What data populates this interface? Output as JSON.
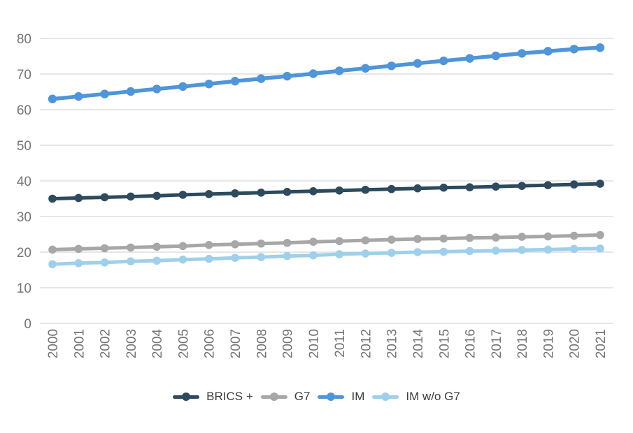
{
  "chart_data": {
    "type": "line",
    "title": "",
    "categories": [
      "2000",
      "2001",
      "2002",
      "2003",
      "2004",
      "2005",
      "2006",
      "2007",
      "2008",
      "2009",
      "2010",
      "2011",
      "2012",
      "2013",
      "2014",
      "2015",
      "2016",
      "2017",
      "2018",
      "2019",
      "2020",
      "2021"
    ],
    "series": [
      {
        "name": "BRICS +",
        "color": "#2d4a5e",
        "values": [
          35.0,
          35.2,
          35.4,
          35.6,
          35.8,
          36.1,
          36.3,
          36.5,
          36.7,
          36.9,
          37.1,
          37.3,
          37.5,
          37.7,
          37.9,
          38.1,
          38.2,
          38.4,
          38.6,
          38.8,
          39.0,
          39.2
        ]
      },
      {
        "name": "G7",
        "color": "#a7a7a7",
        "values": [
          20.7,
          20.9,
          21.1,
          21.3,
          21.5,
          21.7,
          22.0,
          22.2,
          22.4,
          22.6,
          22.9,
          23.1,
          23.3,
          23.5,
          23.7,
          23.8,
          24.0,
          24.1,
          24.3,
          24.4,
          24.6,
          24.8
        ]
      },
      {
        "name": "IM",
        "color": "#4e95d9",
        "values": [
          63.0,
          63.7,
          64.4,
          65.1,
          65.8,
          66.5,
          67.2,
          68.0,
          68.7,
          69.4,
          70.1,
          70.9,
          71.6,
          72.3,
          73.0,
          73.7,
          74.4,
          75.1,
          75.8,
          76.4,
          77.0,
          77.4
        ]
      },
      {
        "name": "IM w/o G7",
        "color": "#9ed0eb",
        "values": [
          16.6,
          16.9,
          17.1,
          17.4,
          17.6,
          17.9,
          18.1,
          18.4,
          18.6,
          18.9,
          19.1,
          19.4,
          19.6,
          19.8,
          20.0,
          20.1,
          20.3,
          20.4,
          20.6,
          20.7,
          20.9,
          21.0
        ]
      }
    ],
    "y_axis": {
      "min": 0,
      "max": 80,
      "step": 10,
      "tick_labels": [
        "0",
        "10",
        "20",
        "30",
        "40",
        "50",
        "60",
        "70",
        "80"
      ]
    },
    "x_axis": {
      "label_rotation_deg": -90
    },
    "grid": true,
    "legend_position": "bottom",
    "xlabel": "",
    "ylabel": ""
  },
  "colors": {
    "background": "#ffffff",
    "gridline": "#cccccc",
    "axis_text": "#757575",
    "legend_text": "#3d3d3d"
  }
}
